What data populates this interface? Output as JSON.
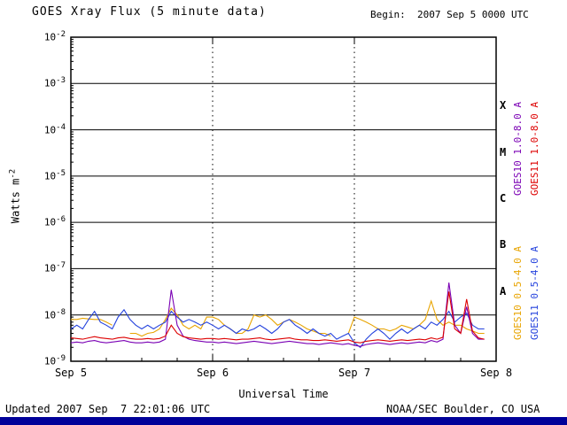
{
  "header": {
    "title": "GOES Xray Flux (5 minute data)",
    "begin_label": "Begin:  2007 Sep 5 0000 UTC"
  },
  "axes": {
    "y_label_base": "Watts m",
    "y_label_exp": "-2",
    "x_label": "Universal Time"
  },
  "footer": {
    "updated": "Updated 2007 Sep  7 22:01:06 UTC",
    "source": "NOAA/SEC Boulder, CO USA"
  },
  "colors": {
    "bottom_bar": "#000099",
    "axis": "#000000"
  },
  "chart_data": {
    "type": "line",
    "title": "GOES Xray Flux (5 minute data)",
    "xlabel": "Universal Time",
    "ylabel": "Watts m^-2",
    "x_unit": "hours since 2007 Sep 5 0000 UTC",
    "xlim": [
      0,
      72
    ],
    "ylim_exponents": [
      -9,
      -2
    ],
    "y_tick_exponents": [
      -2,
      -3,
      -4,
      -5,
      -6,
      -7,
      -8,
      -9
    ],
    "grid": {
      "h_solid_exponents": [
        -3,
        -4,
        -5,
        -6,
        -7,
        -8
      ],
      "v_dashed_hours": [
        24,
        48
      ]
    },
    "x_day_ticks": [
      {
        "hour": 0,
        "label": "Sep 5"
      },
      {
        "hour": 24,
        "label": "Sep 6"
      },
      {
        "hour": 48,
        "label": "Sep 7"
      },
      {
        "hour": 72,
        "label": "Sep 8"
      }
    ],
    "flare_classes": [
      {
        "label": "X",
        "center_exp": -3.5
      },
      {
        "label": "M",
        "center_exp": -4.5
      },
      {
        "label": "C",
        "center_exp": -5.5
      },
      {
        "label": "B",
        "center_exp": -6.5
      },
      {
        "label": "A",
        "center_exp": -7.5
      }
    ],
    "legend_position": "right-vertical",
    "x_hours": [
      0,
      1,
      2,
      3,
      4,
      5,
      6,
      7,
      8,
      9,
      10,
      11,
      12,
      13,
      14,
      15,
      16,
      17,
      18,
      19,
      20,
      21,
      22,
      23,
      24,
      25,
      26,
      27,
      28,
      29,
      30,
      31,
      32,
      33,
      34,
      35,
      36,
      37,
      38,
      39,
      40,
      41,
      42,
      43,
      44,
      45,
      46,
      47,
      48,
      49,
      50,
      51,
      52,
      53,
      54,
      55,
      56,
      57,
      58,
      59,
      60,
      61,
      62,
      63,
      64,
      65,
      66,
      67,
      68,
      69,
      70
    ],
    "series": [
      {
        "name": "GOES10 1.0-8.0 A",
        "color": "#7a00b4",
        "values": [
          2.5e-09,
          2.6e-09,
          2.5e-09,
          2.7e-09,
          2.8e-09,
          2.6e-09,
          2.5e-09,
          2.6e-09,
          2.7e-09,
          2.8e-09,
          2.6e-09,
          2.5e-09,
          2.5e-09,
          2.6e-09,
          2.5e-09,
          2.6e-09,
          3e-09,
          3.5e-08,
          6e-09,
          3.5e-09,
          3e-09,
          2.8e-09,
          2.7e-09,
          2.6e-09,
          2.6e-09,
          2.5e-09,
          2.6e-09,
          2.5e-09,
          2.4e-09,
          2.5e-09,
          2.6e-09,
          2.7e-09,
          2.6e-09,
          2.5e-09,
          2.4e-09,
          2.5e-09,
          2.6e-09,
          2.7e-09,
          2.6e-09,
          2.5e-09,
          2.4e-09,
          2.4e-09,
          2.3e-09,
          2.4e-09,
          2.5e-09,
          2.4e-09,
          2.3e-09,
          2.4e-09,
          2.2e-09,
          2.1e-09,
          2.3e-09,
          2.4e-09,
          2.5e-09,
          2.4e-09,
          2.3e-09,
          2.4e-09,
          2.5e-09,
          2.4e-09,
          2.5e-09,
          2.6e-09,
          2.5e-09,
          2.8e-09,
          2.6e-09,
          3e-09,
          5e-08,
          6e-09,
          4e-09,
          1.5e-08,
          4e-09,
          3e-09,
          3e-09
        ]
      },
      {
        "name": "GOES11 1.0-8.0 A",
        "color": "#dd0000",
        "values": [
          3.2e-09,
          3.1e-09,
          3e-09,
          3.2e-09,
          3.4e-09,
          3.2e-09,
          3.1e-09,
          3e-09,
          3.2e-09,
          3.3e-09,
          3.1e-09,
          3e-09,
          3e-09,
          3.1e-09,
          3e-09,
          3.1e-09,
          3.5e-09,
          6e-09,
          4e-09,
          3.4e-09,
          3.2e-09,
          3.1e-09,
          3e-09,
          3.1e-09,
          3.1e-09,
          3e-09,
          3.1e-09,
          3e-09,
          2.9e-09,
          3e-09,
          3e-09,
          3.1e-09,
          3.2e-09,
          3e-09,
          2.9e-09,
          3e-09,
          3.1e-09,
          3.2e-09,
          3e-09,
          2.9e-09,
          2.9e-09,
          2.8e-09,
          2.8e-09,
          2.9e-09,
          2.8e-09,
          2.7e-09,
          2.8e-09,
          2.9e-09,
          2.6e-09,
          2.5e-09,
          2.7e-09,
          2.8e-09,
          2.9e-09,
          2.8e-09,
          2.7e-09,
          2.8e-09,
          2.9e-09,
          2.8e-09,
          2.9e-09,
          3e-09,
          2.9e-09,
          3.2e-09,
          3e-09,
          3.3e-09,
          3.2e-08,
          5e-09,
          4e-09,
          2.2e-08,
          4.5e-09,
          3.2e-09,
          3e-09
        ]
      },
      {
        "name": "GOES10 0.5-4.0 A",
        "color": "#e8a400",
        "values": [
          8e-09,
          8e-09,
          8.5e-09,
          8.2e-09,
          8e-09,
          8e-09,
          7e-09,
          6e-09,
          null,
          null,
          4e-09,
          4e-09,
          3.5e-09,
          4e-09,
          4.2e-09,
          5e-09,
          8e-09,
          1.4e-08,
          1e-08,
          6e-09,
          5e-09,
          6e-09,
          5e-09,
          9e-09,
          9e-09,
          8e-09,
          6e-09,
          5e-09,
          4e-09,
          4e-09,
          5e-09,
          1e-08,
          9e-09,
          1e-08,
          8e-09,
          6e-09,
          7e-09,
          8e-09,
          7e-09,
          6e-09,
          5e-09,
          4.5e-09,
          4e-09,
          4e-09,
          3.5e-09,
          null,
          null,
          4e-09,
          9e-09,
          8e-09,
          7e-09,
          6e-09,
          5e-09,
          5e-09,
          4.5e-09,
          5e-09,
          6e-09,
          5.5e-09,
          5e-09,
          6e-09,
          8e-09,
          2e-08,
          8e-09,
          6e-09,
          7e-09,
          6e-09,
          6e-09,
          5e-09,
          4.5e-09,
          4e-09,
          4e-09
        ]
      },
      {
        "name": "GOES11 0.5-4.0 A",
        "color": "#2442dd",
        "values": [
          5e-09,
          6e-09,
          5e-09,
          8e-09,
          1.2e-08,
          7e-09,
          6e-09,
          5e-09,
          9e-09,
          1.3e-08,
          8e-09,
          6e-09,
          5e-09,
          6e-09,
          5e-09,
          6e-09,
          7e-09,
          1.2e-08,
          9e-09,
          7e-09,
          8e-09,
          7e-09,
          6e-09,
          7e-09,
          6e-09,
          5e-09,
          6e-09,
          5e-09,
          4e-09,
          5e-09,
          4.5e-09,
          5e-09,
          6e-09,
          5e-09,
          4e-09,
          5e-09,
          7e-09,
          8e-09,
          6e-09,
          5e-09,
          4e-09,
          5e-09,
          4e-09,
          3.5e-09,
          4e-09,
          3e-09,
          3.5e-09,
          4e-09,
          2.5e-09,
          2e-09,
          3e-09,
          4e-09,
          5e-09,
          4e-09,
          3e-09,
          4e-09,
          5e-09,
          4e-09,
          5e-09,
          6e-09,
          5e-09,
          7e-09,
          6e-09,
          8e-09,
          1.2e-08,
          7e-09,
          9e-09,
          1.1e-08,
          6e-09,
          5e-09,
          5e-09
        ]
      }
    ]
  }
}
